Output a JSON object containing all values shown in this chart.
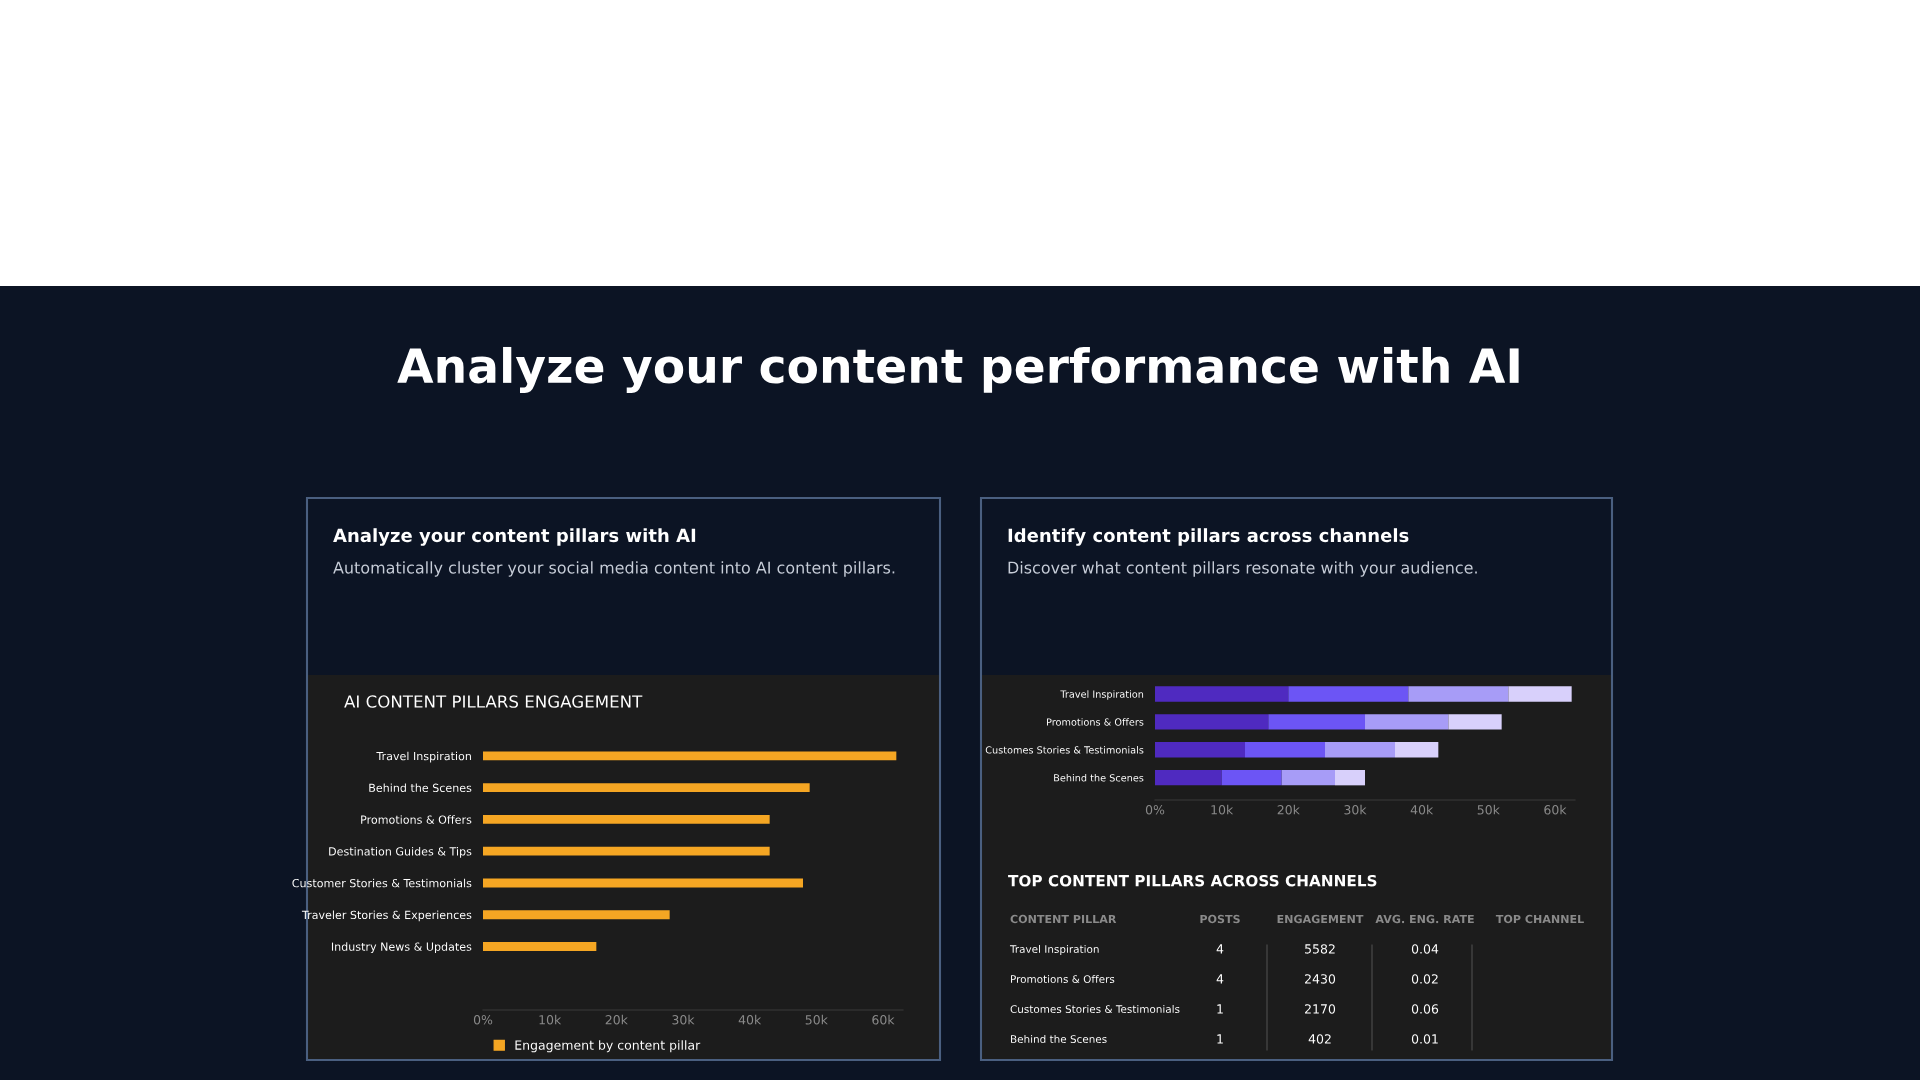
{
  "chart_data": [
    {
      "type": "other",
      "title": "Analyze your content performance with AI"
    },
    {
      "type": "bar",
      "orientation": "horizontal",
      "title": "Analyze your content pillars with AI",
      "subtitle": "Automatically cluster your social media content into AI content pillars.",
      "annotations": [
        "AI CONTENT PILLARS ENGAGEMENT"
      ],
      "categories": [
        "Travel Inspiration",
        "Behind the Scenes",
        "Promotions & Offers",
        "Destination Guides & Tips",
        "Customer Stories & Testimonials",
        "Traveler Stories & Experiences",
        "Industry News & Updates"
      ],
      "series": [
        {
          "name": "Engagement by content pillar",
          "color": "#f5a623",
          "values": [
            62000,
            49000,
            43000,
            43000,
            48000,
            28000,
            17000
          ]
        }
      ],
      "xlim": [
        0,
        63000
      ],
      "xticks": [
        {
          "value": 0,
          "label": "0%"
        },
        {
          "value": 10000,
          "label": "10k"
        },
        {
          "value": 20000,
          "label": "20k"
        },
        {
          "value": 30000,
          "label": "30k"
        },
        {
          "value": 40000,
          "label": "40k"
        },
        {
          "value": 50000,
          "label": "50k"
        },
        {
          "value": 60000,
          "label": "60k"
        }
      ],
      "grid": false,
      "legend": "bottom"
    },
    {
      "type": "bar",
      "orientation": "horizontal",
      "stacked": true,
      "title": "Identify content pillars across channels",
      "subtitle": "Discover what content pillars resonate with your audience.",
      "categories": [
        "Travel Inspiration",
        "Promotions & Offers",
        "Customes Stories & Testimonials",
        "Behind the Scenes"
      ],
      "series": [
        {
          "color": "#4f2ac0",
          "values": [
            20000,
            17000,
            13500,
            10000
          ]
        },
        {
          "color": "#6c55f5",
          "values": [
            18000,
            14500,
            12000,
            9000
          ]
        },
        {
          "color": "#a79cf7",
          "values": [
            15000,
            12500,
            10500,
            8000
          ]
        },
        {
          "color": "#d8d0fb",
          "values": [
            9500,
            8000,
            6500,
            4500
          ]
        }
      ],
      "xlim": [
        0,
        63000
      ],
      "xticks": [
        {
          "value": 0,
          "label": "0%"
        },
        {
          "value": 10000,
          "label": "10k"
        },
        {
          "value": 20000,
          "label": "20k"
        },
        {
          "value": 30000,
          "label": "30k"
        },
        {
          "value": 40000,
          "label": "40k"
        },
        {
          "value": 50000,
          "label": "50k"
        },
        {
          "value": 60000,
          "label": "60k"
        }
      ],
      "grid": false,
      "legend": false
    },
    {
      "type": "other",
      "title": "TOP CONTENT PILLARS ACROSS CHANNELS",
      "categories": [
        "CONTENT PILLAR",
        "POSTS",
        "ENGAGEMENT",
        "AVG. ENG. RATE",
        "TOP CHANNEL"
      ],
      "cell_labels": [
        [
          "Travel Inspiration",
          "4",
          "5582",
          "0.04",
          null
        ],
        [
          "Promotions & Offers",
          "4",
          "2430",
          "0.02",
          null
        ],
        [
          "Customes Stories & Testimonials",
          "1",
          "2170",
          "0.06",
          null
        ],
        [
          "Behind the Scenes",
          "1",
          "402",
          "0.01",
          null
        ]
      ]
    }
  ]
}
